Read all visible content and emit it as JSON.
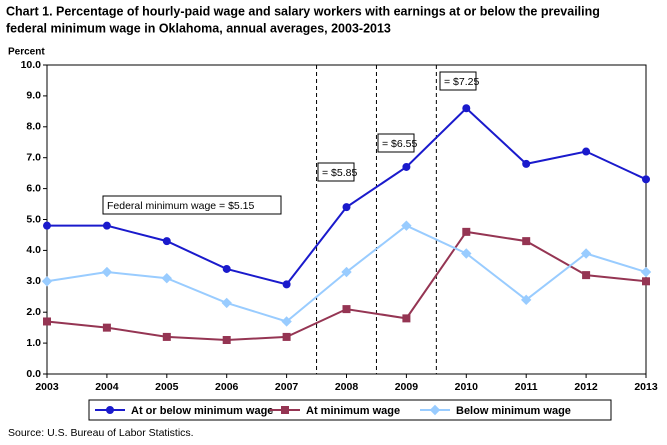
{
  "chart_data": {
    "type": "line",
    "title": [
      "Chart 1. Percentage of hourly-paid wage and salary workers with earnings at or below the prevailing",
      "federal minimum wage in Oklahoma, annual averages, 2003-2013"
    ],
    "y_axis_label": "Percent",
    "categories": [
      "2003",
      "2004",
      "2005",
      "2006",
      "2007",
      "2008",
      "2009",
      "2010",
      "2011",
      "2012",
      "2013"
    ],
    "series": [
      {
        "name": "At or below minimum wage",
        "color": "#1a1acc",
        "marker": "circle",
        "values": [
          4.8,
          4.8,
          4.3,
          3.4,
          2.9,
          5.4,
          6.7,
          8.6,
          6.8,
          7.2,
          6.3
        ]
      },
      {
        "name": "At minimum wage",
        "color": "#953553",
        "marker": "square",
        "values": [
          1.7,
          1.5,
          1.2,
          1.1,
          1.2,
          2.1,
          1.8,
          4.6,
          4.3,
          3.2,
          3.0
        ]
      },
      {
        "name": "Below minimum wage",
        "color": "#99ccff",
        "marker": "diamond",
        "values": [
          3.0,
          3.3,
          3.1,
          2.3,
          1.7,
          3.3,
          4.8,
          3.9,
          2.4,
          3.9,
          3.3
        ]
      }
    ],
    "ylim": [
      0,
      10
    ],
    "yticks": [
      {
        "value": 0,
        "label": "0.0"
      },
      {
        "value": 1,
        "label": "1.0"
      },
      {
        "value": 2,
        "label": "2.0"
      },
      {
        "value": 3,
        "label": "3.0"
      },
      {
        "value": 4,
        "label": "4.0"
      },
      {
        "value": 5,
        "label": "5.0"
      },
      {
        "value": 6,
        "label": "6.0"
      },
      {
        "value": 7,
        "label": "7.0"
      },
      {
        "value": 8,
        "label": "8.0"
      },
      {
        "value": 9,
        "label": "9.0"
      },
      {
        "value": 10,
        "label": "10.0"
      }
    ],
    "annotations": [
      "Federal minimum wage = $5.15",
      "= $5.85",
      "= $6.55",
      "= $7.25"
    ],
    "grid": false,
    "legend": "bottom",
    "source": "Source: U.S. Bureau of Labor Statistics."
  }
}
